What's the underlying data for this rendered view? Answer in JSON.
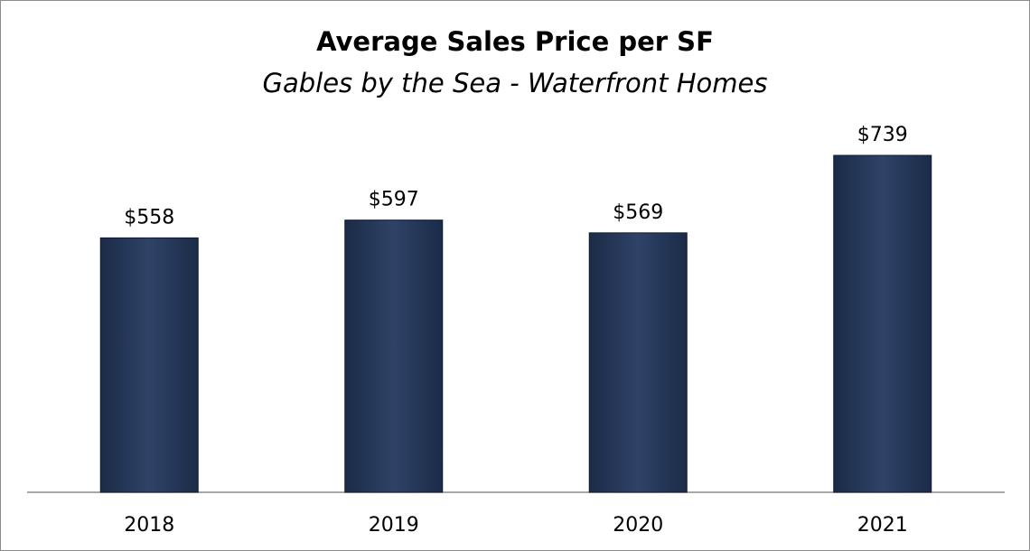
{
  "chart_data": {
    "type": "bar",
    "title": "Average Sales Price per SF",
    "subtitle": "Gables by the Sea - Waterfront Homes",
    "categories": [
      "2018",
      "2019",
      "2020",
      "2021"
    ],
    "values": [
      558,
      597,
      569,
      739
    ],
    "value_labels": [
      "$558",
      "$597",
      "$569",
      "$739"
    ],
    "xlabel": "",
    "ylabel": "",
    "ylim": [
      0,
      739
    ],
    "grid": false,
    "legend": "none",
    "bar_color": "#1b2b47",
    "bar_highlight_color": "#2f4368"
  }
}
